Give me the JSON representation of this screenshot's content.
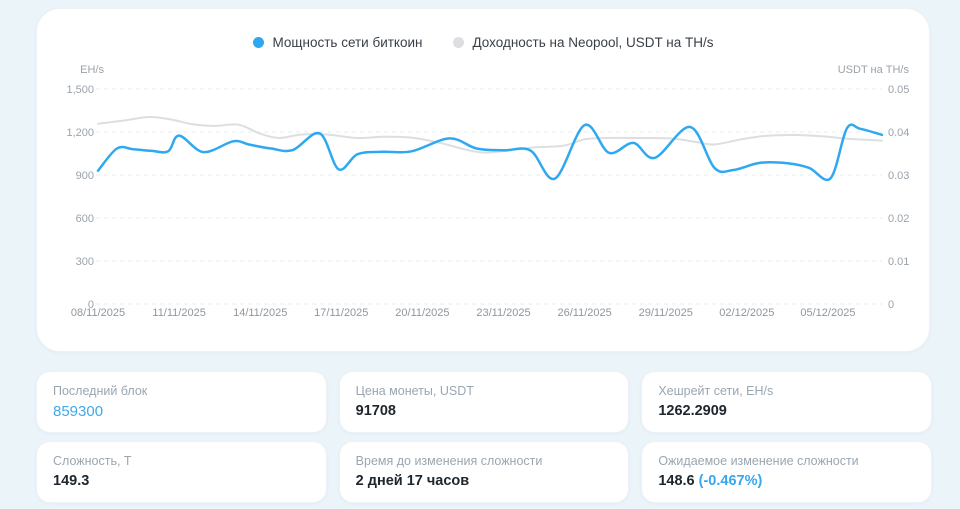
{
  "colors": {
    "accent_blue": "#2ea9f1",
    "secondary_gray": "#dcdee1",
    "link_blue": "#3fa9ea",
    "grid": "#e4ecf2",
    "tick_text": "#9aa3ab",
    "page_bg": "#eaf4f9"
  },
  "chart_data": {
    "type": "line",
    "title": "",
    "x_axis": {
      "labels": [
        "08/11/2025",
        "11/11/2025",
        "14/11/2025",
        "17/11/2025",
        "20/11/2025",
        "23/11/2025",
        "26/11/2025",
        "29/11/2025",
        "02/12/2025",
        "05/12/2025"
      ],
      "label_days": [
        0,
        3,
        6,
        9,
        12,
        15,
        18,
        21,
        24,
        27
      ],
      "total_days": 29
    },
    "left_axis": {
      "title": "EH/s",
      "ticks": [
        "1,500",
        "1,200",
        "900",
        "600",
        "300",
        "0"
      ],
      "min": 0,
      "max": 1500
    },
    "right_axis": {
      "title": "USDT на TH/s",
      "ticks": [
        "0.05",
        "0.04",
        "0.03",
        "0.02",
        "0.01",
        "0"
      ],
      "min": 0,
      "max": 0.05
    },
    "grid": "dashed-horizontal",
    "legend_position": "top-center",
    "series": [
      {
        "name": "Мощность сети биткоин",
        "axis": "left",
        "color": "#2ea9f1",
        "points": [
          [
            0,
            930
          ],
          [
            0.7,
            1085
          ],
          [
            1.3,
            1080
          ],
          [
            2,
            1068
          ],
          [
            2.6,
            1066
          ],
          [
            3,
            1175
          ],
          [
            3.9,
            1060
          ],
          [
            5,
            1135
          ],
          [
            5.6,
            1112
          ],
          [
            6.4,
            1085
          ],
          [
            7.2,
            1074
          ],
          [
            8.2,
            1190
          ],
          [
            8.9,
            940
          ],
          [
            9.6,
            1045
          ],
          [
            10.5,
            1062
          ],
          [
            11.6,
            1065
          ],
          [
            13,
            1155
          ],
          [
            14,
            1085
          ],
          [
            15,
            1072
          ],
          [
            16,
            1070
          ],
          [
            16.9,
            875
          ],
          [
            18,
            1248
          ],
          [
            18.9,
            1055
          ],
          [
            19.8,
            1124
          ],
          [
            20.6,
            1020
          ],
          [
            21.9,
            1235
          ],
          [
            22.8,
            950
          ],
          [
            23.5,
            935
          ],
          [
            24.5,
            985
          ],
          [
            25.5,
            982
          ],
          [
            26.3,
            950
          ],
          [
            27.1,
            878
          ],
          [
            27.7,
            1225
          ],
          [
            28.2,
            1222
          ],
          [
            29,
            1180
          ]
        ]
      },
      {
        "name": "Доходность на Neopool, USDT на TH/s",
        "axis": "right",
        "color": "#dcdee1",
        "points": [
          [
            0,
            0.0419
          ],
          [
            1,
            0.0427
          ],
          [
            1.9,
            0.0435
          ],
          [
            2.7,
            0.0429
          ],
          [
            3.5,
            0.0418
          ],
          [
            4.3,
            0.0414
          ],
          [
            5.2,
            0.0417
          ],
          [
            6,
            0.0396
          ],
          [
            6.7,
            0.0386
          ],
          [
            7.5,
            0.0394
          ],
          [
            8.5,
            0.0394
          ],
          [
            9.6,
            0.0386
          ],
          [
            10.6,
            0.0389
          ],
          [
            11.6,
            0.0387
          ],
          [
            12.7,
            0.0374
          ],
          [
            13.6,
            0.0359
          ],
          [
            14.3,
            0.0352
          ],
          [
            15.2,
            0.0357
          ],
          [
            16.1,
            0.0364
          ],
          [
            17.2,
            0.0368
          ],
          [
            18,
            0.0383
          ],
          [
            18.8,
            0.0386
          ],
          [
            20,
            0.0386
          ],
          [
            21.2,
            0.0385
          ],
          [
            22.1,
            0.0377
          ],
          [
            22.8,
            0.0371
          ],
          [
            23.8,
            0.0383
          ],
          [
            24.7,
            0.0391
          ],
          [
            25.8,
            0.0393
          ],
          [
            26.8,
            0.039
          ],
          [
            27.8,
            0.0384
          ],
          [
            29,
            0.038
          ]
        ]
      }
    ]
  },
  "cards": [
    {
      "label": "Последний блок",
      "value": "859300"
    },
    {
      "label": "Цена монеты, USDT",
      "value": "91708"
    },
    {
      "label": "Хешрейт сети, EH/s",
      "value": "1262.2909"
    },
    {
      "label": "Сложность, T",
      "value": "149.3"
    },
    {
      "label": "Время до изменения сложности",
      "value": "2 дней 17 часов"
    },
    {
      "label": "Ожидаемое изменение сложности",
      "value": "148.6",
      "extra": "(-0.467%)"
    }
  ]
}
